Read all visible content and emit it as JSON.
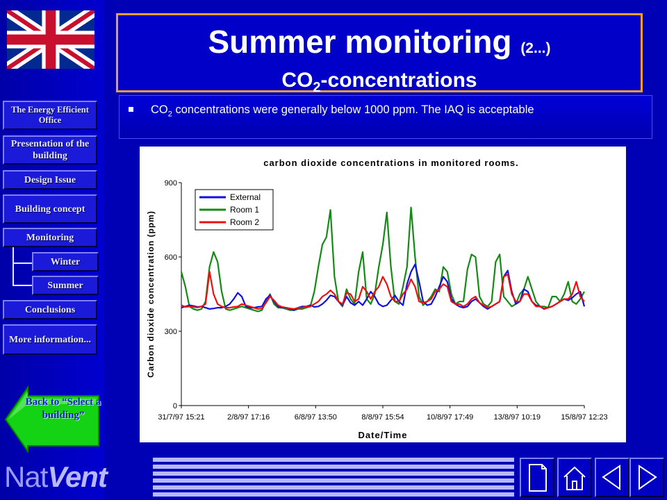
{
  "sidebar": {
    "items": [
      {
        "label": "The Energy Efficient Office"
      },
      {
        "label": "Presentation of the building"
      },
      {
        "label": "Design Issue"
      },
      {
        "label": "Building concept"
      },
      {
        "label": "Monitoring"
      },
      {
        "label": "Winter"
      },
      {
        "label": "Summer"
      },
      {
        "label": "Conclusions"
      },
      {
        "label": "More information..."
      }
    ],
    "back_button": "Back to “Select a building”"
  },
  "brand": {
    "nat": "Nat",
    "vent": "Vent"
  },
  "title": {
    "main": "Summer monitoring",
    "suffix": "(2...)",
    "sub_prefix": "CO",
    "sub_subscript": "2",
    "sub_suffix": "-concentrations"
  },
  "bullet": {
    "prefix": "CO",
    "subscript": "2",
    "text": " concentrations were generally below 1000 ppm. The IAQ is acceptable"
  },
  "colors": {
    "background": "#0000b4",
    "title_border": "#f0a030",
    "external": "#1010e0",
    "room1": "#138a13",
    "room2": "#ee1010"
  },
  "icons": [
    "uk-flag-icon",
    "back-arrow-icon",
    "document-icon",
    "home-icon",
    "previous-icon",
    "next-icon"
  ],
  "chart_data": {
    "type": "line",
    "title": "carbon dioxide concentrations in monitored rooms.",
    "xlabel": "Date/Time",
    "ylabel": "Carbon dioxide concentration (ppm)",
    "ylim": [
      0,
      900
    ],
    "yticks": [
      0,
      300,
      600,
      900
    ],
    "xticks": [
      "31/7/97 15:21",
      "2/8/97 17:16",
      "6/8/97 13:50",
      "8/8/97 15:54",
      "10/8/97 17:49",
      "13/8/97 10:19",
      "15/8/97 12:23"
    ],
    "legend_position": "top-left",
    "x": [
      0,
      1,
      2,
      3,
      4,
      5,
      6,
      7,
      8,
      9,
      10,
      11,
      12,
      13,
      14,
      15,
      16,
      17,
      18,
      19,
      20,
      21,
      22,
      23,
      24,
      25,
      26,
      27,
      28,
      29,
      30,
      31,
      32,
      33,
      34,
      35,
      36,
      37,
      38,
      39,
      40,
      41,
      42,
      43,
      44,
      45,
      46,
      47,
      48,
      49,
      50,
      51,
      52,
      53,
      54,
      55,
      56,
      57,
      58,
      59,
      60,
      61,
      62,
      63,
      64,
      65,
      66,
      67,
      68,
      69,
      70,
      71,
      72,
      73,
      74,
      75,
      76,
      77,
      78,
      79,
      80,
      81,
      82,
      83,
      84,
      85,
      86,
      87,
      88,
      89,
      90,
      91,
      92,
      93,
      94,
      95,
      96,
      97,
      98,
      99,
      100
    ],
    "series": [
      {
        "name": "External",
        "values": [
          395,
          400,
          405,
          402,
          398,
          400,
          395,
          390,
          392,
          395,
          395,
          400,
          410,
          430,
          455,
          440,
          400,
          395,
          395,
          398,
          400,
          430,
          445,
          420,
          400,
          395,
          395,
          390,
          385,
          395,
          400,
          400,
          405,
          398,
          400,
          410,
          425,
          445,
          440,
          420,
          405,
          440,
          415,
          405,
          420,
          405,
          430,
          460,
          440,
          410,
          400,
          405,
          425,
          445,
          420,
          405,
          490,
          540,
          570,
          500,
          420,
          405,
          410,
          440,
          480,
          520,
          500,
          430,
          410,
          400,
          395,
          400,
          420,
          430,
          415,
          400,
          390,
          400,
          410,
          420,
          520,
          545,
          460,
          410,
          420,
          470,
          460,
          420,
          405,
          400,
          390,
          395,
          400,
          410,
          420,
          430,
          425,
          435,
          450,
          460,
          400
        ]
      },
      {
        "name": "Room 1",
        "values": [
          540,
          480,
          400,
          390,
          385,
          390,
          420,
          560,
          620,
          580,
          460,
          390,
          385,
          390,
          395,
          400,
          395,
          390,
          385,
          380,
          385,
          420,
          450,
          410,
          395,
          395,
          390,
          385,
          385,
          390,
          390,
          395,
          400,
          460,
          560,
          650,
          680,
          790,
          520,
          420,
          400,
          470,
          430,
          410,
          540,
          620,
          430,
          410,
          450,
          560,
          650,
          780,
          560,
          420,
          410,
          480,
          560,
          800,
          600,
          440,
          405,
          420,
          440,
          470,
          460,
          560,
          540,
          450,
          410,
          420,
          420,
          550,
          610,
          600,
          440,
          410,
          400,
          420,
          580,
          610,
          440,
          420,
          400,
          410,
          450,
          470,
          520,
          470,
          420,
          400,
          400,
          395,
          440,
          440,
          420,
          450,
          500,
          420,
          410,
          430,
          460
        ]
      },
      {
        "name": "Room 2",
        "values": [
          405,
          398,
          400,
          398,
          396,
          400,
          410,
          540,
          450,
          410,
          400,
          395,
          395,
          398,
          400,
          410,
          405,
          400,
          395,
          390,
          392,
          415,
          440,
          425,
          405,
          398,
          395,
          392,
          390,
          395,
          395,
          400,
          400,
          410,
          420,
          440,
          450,
          465,
          450,
          420,
          410,
          455,
          450,
          420,
          430,
          480,
          460,
          430,
          460,
          480,
          520,
          490,
          440,
          420,
          420,
          450,
          470,
          510,
          480,
          420,
          415,
          420,
          430,
          460,
          470,
          490,
          480,
          420,
          410,
          410,
          400,
          410,
          430,
          440,
          415,
          405,
          395,
          400,
          410,
          420,
          520,
          530,
          450,
          420,
          420,
          450,
          450,
          420,
          400,
          400,
          392,
          395,
          400,
          410,
          420,
          430,
          430,
          450,
          500,
          440,
          420
        ]
      }
    ]
  }
}
